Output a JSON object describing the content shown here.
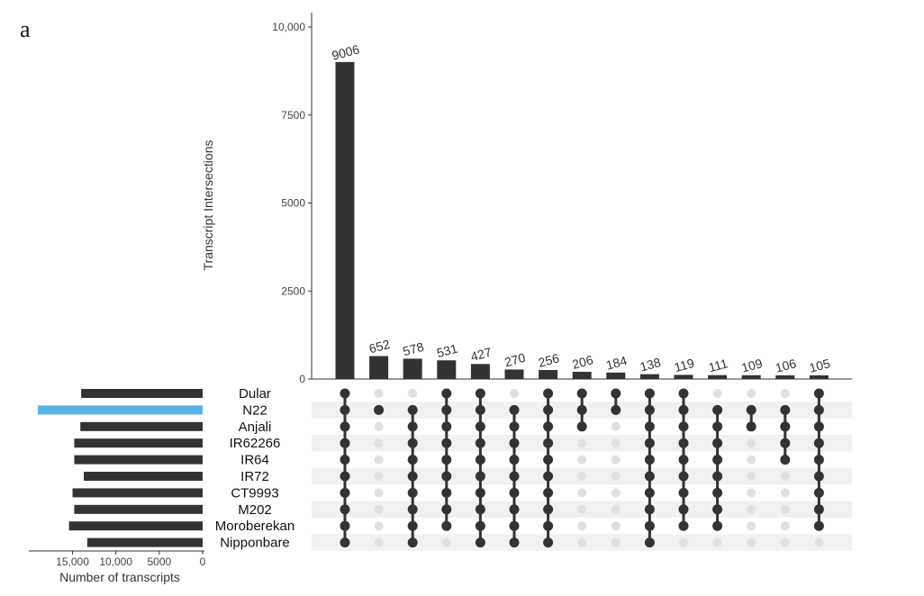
{
  "panel_label": "a",
  "chart_data": {
    "type": "upset",
    "intersection_axis": {
      "title": "Transcript Intersections",
      "ylim": [
        0,
        10000
      ],
      "ticks": [
        0,
        2500,
        5000,
        7500,
        10000
      ],
      "tick_labels": [
        "0",
        "2500",
        "5000",
        "7500",
        "10,000"
      ]
    },
    "set_size_axis": {
      "title": "Number of transcripts",
      "xlim": [
        0,
        19000
      ],
      "ticks": [
        15000,
        10000,
        5000,
        0
      ],
      "tick_labels": [
        "15,000",
        "10,000",
        "5000",
        "0"
      ]
    },
    "sets": [
      "Dular",
      "N22",
      "Anjali",
      "IR62266",
      "IR64",
      "IR72",
      "CT9993",
      "M202",
      "Moroberekan",
      "Nipponbare"
    ],
    "set_sizes": [
      14000,
      19000,
      14100,
      14800,
      14800,
      13700,
      15000,
      14800,
      15400,
      13300
    ],
    "highlight_set": "N22",
    "highlight_color": "#56b4e9",
    "bar_color": "#333333",
    "intersections": [
      {
        "value": 9006,
        "sets": [
          "Dular",
          "N22",
          "Anjali",
          "IR62266",
          "IR64",
          "IR72",
          "CT9993",
          "M202",
          "Moroberekan",
          "Nipponbare"
        ]
      },
      {
        "value": 652,
        "sets": [
          "N22"
        ]
      },
      {
        "value": 578,
        "sets": [
          "N22",
          "Anjali",
          "IR62266",
          "IR64",
          "IR72",
          "CT9993",
          "M202",
          "Moroberekan",
          "Nipponbare"
        ]
      },
      {
        "value": 531,
        "sets": [
          "Dular",
          "N22",
          "Anjali",
          "IR62266",
          "IR64",
          "IR72",
          "CT9993",
          "M202",
          "Moroberekan"
        ]
      },
      {
        "value": 427,
        "sets": [
          "Dular",
          "N22",
          "Anjali",
          "IR62266",
          "IR64",
          "IR72",
          "CT9993",
          "M202",
          "Moroberekan",
          "Nipponbare"
        ]
      },
      {
        "value": 270,
        "sets": [
          "N22",
          "Anjali",
          "IR62266",
          "IR64",
          "IR72",
          "CT9993",
          "M202",
          "Moroberekan",
          "Nipponbare"
        ]
      },
      {
        "value": 256,
        "sets": [
          "Dular",
          "N22",
          "Anjali",
          "IR62266",
          "IR64",
          "IR72",
          "CT9993",
          "M202",
          "Moroberekan",
          "Nipponbare"
        ]
      },
      {
        "value": 206,
        "sets": [
          "Dular",
          "N22",
          "Anjali"
        ]
      },
      {
        "value": 184,
        "sets": [
          "Dular",
          "N22"
        ]
      },
      {
        "value": 138,
        "sets": [
          "Dular",
          "N22",
          "Anjali",
          "IR62266",
          "IR64",
          "IR72",
          "CT9993",
          "M202",
          "Moroberekan",
          "Nipponbare"
        ]
      },
      {
        "value": 119,
        "sets": [
          "Dular",
          "N22",
          "Anjali",
          "IR62266",
          "IR64",
          "IR72",
          "CT9993",
          "M202",
          "Moroberekan"
        ]
      },
      {
        "value": 111,
        "sets": [
          "N22",
          "Anjali",
          "IR62266",
          "IR64",
          "IR72",
          "CT9993",
          "M202",
          "Moroberekan"
        ]
      },
      {
        "value": 109,
        "sets": [
          "N22",
          "Anjali"
        ]
      },
      {
        "value": 106,
        "sets": [
          "N22",
          "Anjali",
          "IR62266",
          "IR64"
        ]
      },
      {
        "value": 105,
        "sets": [
          "Dular",
          "N22",
          "Anjali",
          "IR62266",
          "IR64",
          "IR72",
          "CT9993",
          "M202",
          "Moroberekan"
        ]
      }
    ]
  }
}
